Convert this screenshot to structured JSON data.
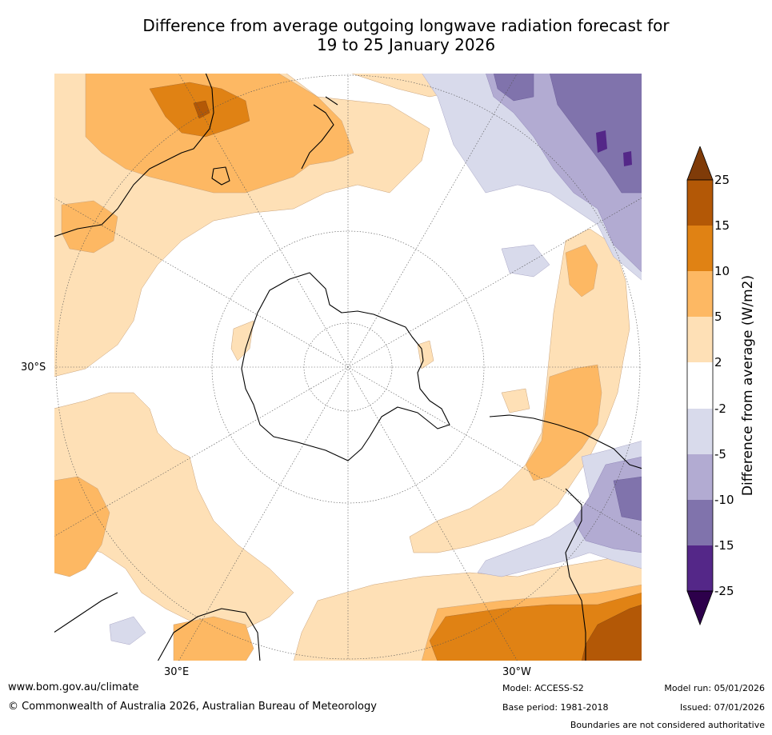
{
  "title": {
    "line1": "Difference from average outgoing longwave radiation forecast for",
    "line2": "19 to 25 January 2026"
  },
  "axis_labels": {
    "left_lat": "30°S",
    "bottom_left_lon": "30°E",
    "bottom_right_lon": "30°W"
  },
  "legend": {
    "label": "Difference from average (W/m2)",
    "ticks": [
      "25",
      "15",
      "10",
      "5",
      "2",
      "-2",
      "-5",
      "-10",
      "-15",
      "-25"
    ],
    "colors": {
      "above_25": "#7f3b08",
      "15_to_25": "#b35806",
      "10_to_15": "#e08214",
      "5_to_10": "#fdb863",
      "2_to_5": "#fee0b6",
      "neutral": "#ffffff",
      "m5_to_m2": "#d8daeb",
      "m10_to_m5": "#b2abd2",
      "m15_to_m10": "#8073ac",
      "m25_to_m15": "#542788",
      "below_m25": "#2d004b"
    }
  },
  "footer": {
    "website": "www.bom.gov.au/climate",
    "copyright": "© Commonwealth of Australia 2026, Australian Bureau of Meteorology",
    "model": "Model: ACCESS-S2",
    "base_period": "Base period: 1981-2018",
    "model_run": "Model run: 05/01/2026",
    "issued": "Issued: 07/01/2026",
    "disclaimer": "Boundaries are not considered authoritative"
  }
}
